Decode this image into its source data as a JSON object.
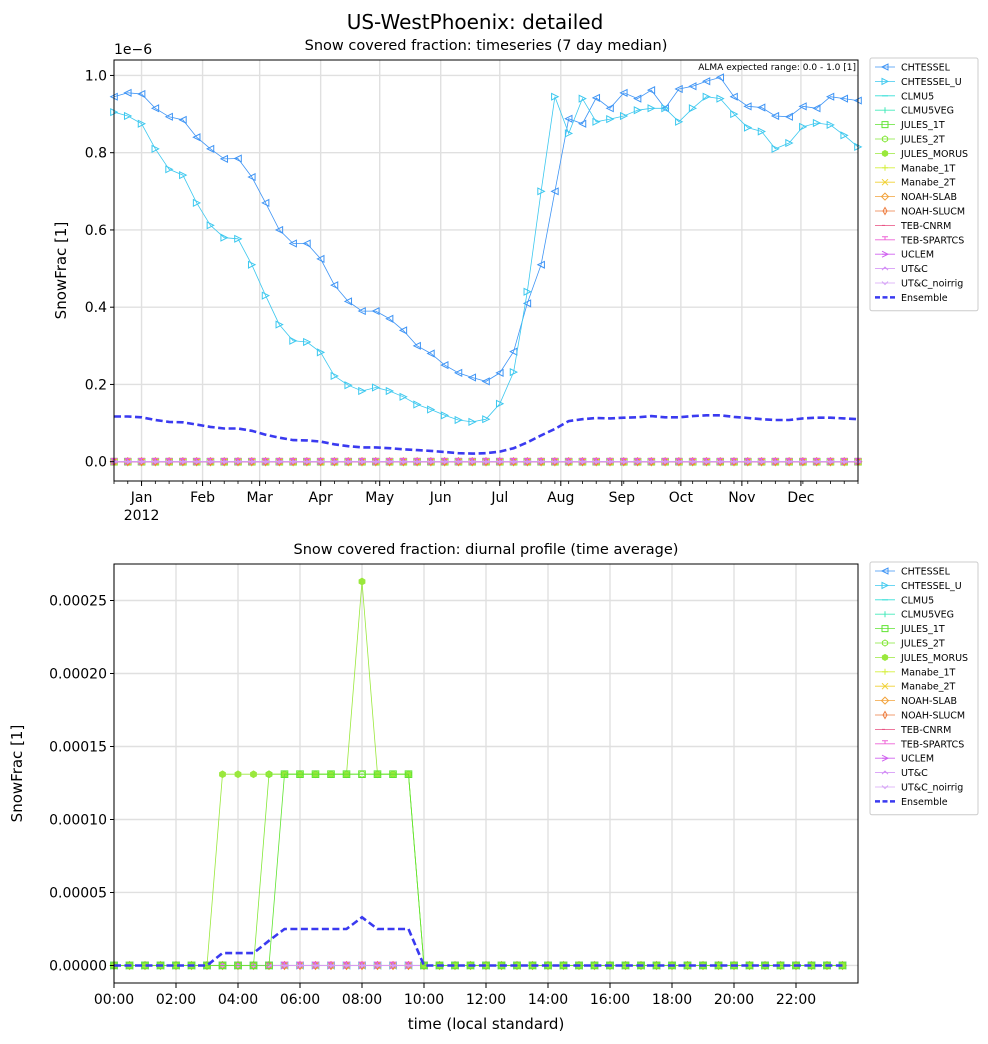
{
  "figure": {
    "suptitle": "US-WestPhoenix: detailed"
  },
  "colors": {
    "CHTESSEL": "#3e94f5",
    "CHTESSEL_U": "#3cc8ef",
    "CLMU5": "#33dfd8",
    "CLMU5VEG": "#40e9b9",
    "JULES_1T": "#5fe430",
    "JULES_2T": "#84e838",
    "JULES_MORUS": "#9ae83c",
    "Manabe_1T": "#d5f03c",
    "Manabe_2T": "#f0d030",
    "NOAH-SLAB": "#f2a23a",
    "NOAH-SLUCM": "#ee7e40",
    "TEB-CNRM": "#e84b7f",
    "TEB-SPARTCS": "#ee60d6",
    "UCLEM": "#d060f0",
    "UT&C": "#d18af5",
    "UT&C_noirrig": "#d6a4f6",
    "Ensemble": "#3a3af0",
    "grid": "#e0e0e0"
  },
  "legend": {
    "entries": [
      {
        "name": "CHTESSEL",
        "marker": "tri-left"
      },
      {
        "name": "CHTESSEL_U",
        "marker": "tri-right"
      },
      {
        "name": "CLMU5",
        "marker": "tick-horizontal"
      },
      {
        "name": "CLMU5VEG",
        "marker": "tick-vertical"
      },
      {
        "name": "JULES_1T",
        "marker": "square"
      },
      {
        "name": "JULES_2T",
        "marker": "hexagon"
      },
      {
        "name": "JULES_MORUS",
        "marker": "filled-hexagon"
      },
      {
        "name": "Manabe_1T",
        "marker": "plus"
      },
      {
        "name": "Manabe_2T",
        "marker": "x"
      },
      {
        "name": "NOAH-SLAB",
        "marker": "diamond"
      },
      {
        "name": "NOAH-SLUCM",
        "marker": "thin-diamond"
      },
      {
        "name": "TEB-CNRM",
        "marker": "tick-left"
      },
      {
        "name": "TEB-SPARTCS",
        "marker": "tick-up"
      },
      {
        "name": "UCLEM",
        "marker": "arrow-right"
      },
      {
        "name": "UT&C",
        "marker": "caret-up"
      },
      {
        "name": "UT&C_noirrig",
        "marker": "caret-down"
      },
      {
        "name": "Ensemble",
        "marker": "dashed-line"
      }
    ]
  },
  "chart_data": [
    {
      "type": "line",
      "title": "Snow covered fraction: timeseries (7 day median)",
      "ylabel": "SnowFrac [1]",
      "y_scale_label": "1e−6",
      "annotation": "ALMA expected range: 0.0 - 1.0 [1]",
      "x_unit": "date",
      "xlim": [
        "2011-12-18",
        "2012-12-30"
      ],
      "ylim": [
        -0.05,
        1.04
      ],
      "yticks": [
        "0.0",
        "0.2",
        "0.4",
        "0.6",
        "0.8",
        "1.0"
      ],
      "ytick_values": [
        0.0,
        0.2,
        0.4,
        0.6,
        0.8,
        1.0
      ],
      "xtick_dates": [
        "2012-01-01",
        "2012-02-01",
        "2012-03-01",
        "2012-04-01",
        "2012-05-01",
        "2012-06-01",
        "2012-07-01",
        "2012-08-01",
        "2012-09-01",
        "2012-10-01",
        "2012-11-01",
        "2012-12-01"
      ],
      "xticks": [
        "Jan",
        "Feb",
        "Mar",
        "Apr",
        "May",
        "Jun",
        "Jul",
        "Aug",
        "Sep",
        "Oct",
        "Nov",
        "Dec"
      ],
      "xtick_year": "2012",
      "grid": true,
      "legend_placement": "outside-right",
      "series": [
        {
          "name": "CHTESSEL",
          "x": [
            "2011-12-18",
            "2011-12-25",
            "2012-01-01",
            "2012-01-08",
            "2012-01-15",
            "2012-01-22",
            "2012-01-29",
            "2012-02-05",
            "2012-02-12",
            "2012-02-19",
            "2012-02-26",
            "2012-03-04",
            "2012-03-11",
            "2012-03-18",
            "2012-03-25",
            "2012-04-01",
            "2012-04-08",
            "2012-04-15",
            "2012-04-22",
            "2012-04-29",
            "2012-05-06",
            "2012-05-13",
            "2012-05-20",
            "2012-05-27",
            "2012-06-03",
            "2012-06-10",
            "2012-06-17",
            "2012-06-24",
            "2012-07-01",
            "2012-07-08",
            "2012-07-15",
            "2012-07-22",
            "2012-07-29",
            "2012-08-05",
            "2012-08-12",
            "2012-08-19",
            "2012-08-26",
            "2012-09-02",
            "2012-09-09",
            "2012-09-16",
            "2012-09-23",
            "2012-09-30",
            "2012-10-07",
            "2012-10-14",
            "2012-10-21",
            "2012-10-28",
            "2012-11-04",
            "2012-11-11",
            "2012-11-18",
            "2012-11-25",
            "2012-12-02",
            "2012-12-09",
            "2012-12-16",
            "2012-12-23",
            "2012-12-30"
          ],
          "y": [
            0.945,
            0.955,
            0.952,
            0.915,
            0.893,
            0.885,
            0.84,
            0.81,
            0.784,
            0.785,
            0.737,
            0.67,
            0.6,
            0.565,
            0.565,
            0.525,
            0.457,
            0.415,
            0.39,
            0.39,
            0.37,
            0.34,
            0.3,
            0.28,
            0.25,
            0.23,
            0.218,
            0.208,
            0.23,
            0.285,
            0.41,
            0.51,
            0.7,
            0.888,
            0.875,
            0.942,
            0.915,
            0.955,
            0.94,
            0.962,
            0.915,
            0.965,
            0.972,
            0.985,
            0.995,
            0.945,
            0.92,
            0.917,
            0.895,
            0.893,
            0.92,
            0.915,
            0.945,
            0.94,
            0.935
          ]
        },
        {
          "name": "CHTESSEL_U",
          "x": [
            "2011-12-18",
            "2011-12-25",
            "2012-01-01",
            "2012-01-08",
            "2012-01-15",
            "2012-01-22",
            "2012-01-29",
            "2012-02-05",
            "2012-02-12",
            "2012-02-19",
            "2012-02-26",
            "2012-03-04",
            "2012-03-11",
            "2012-03-18",
            "2012-03-25",
            "2012-04-01",
            "2012-04-08",
            "2012-04-15",
            "2012-04-22",
            "2012-04-29",
            "2012-05-06",
            "2012-05-13",
            "2012-05-20",
            "2012-05-27",
            "2012-06-03",
            "2012-06-10",
            "2012-06-17",
            "2012-06-24",
            "2012-07-01",
            "2012-07-08",
            "2012-07-15",
            "2012-07-22",
            "2012-07-29",
            "2012-08-05",
            "2012-08-12",
            "2012-08-19",
            "2012-08-26",
            "2012-09-02",
            "2012-09-09",
            "2012-09-16",
            "2012-09-23",
            "2012-09-30",
            "2012-10-07",
            "2012-10-14",
            "2012-10-21",
            "2012-10-28",
            "2012-11-04",
            "2012-11-11",
            "2012-11-18",
            "2012-11-25",
            "2012-12-02",
            "2012-12-09",
            "2012-12-16",
            "2012-12-23",
            "2012-12-30"
          ],
          "y": [
            0.905,
            0.895,
            0.875,
            0.81,
            0.757,
            0.742,
            0.67,
            0.612,
            0.58,
            0.577,
            0.51,
            0.43,
            0.355,
            0.313,
            0.31,
            0.283,
            0.222,
            0.198,
            0.183,
            0.192,
            0.183,
            0.168,
            0.148,
            0.135,
            0.12,
            0.108,
            0.103,
            0.11,
            0.15,
            0.232,
            0.44,
            0.7,
            0.945,
            0.85,
            0.94,
            0.88,
            0.887,
            0.895,
            0.91,
            0.915,
            0.915,
            0.88,
            0.915,
            0.945,
            0.94,
            0.9,
            0.865,
            0.855,
            0.81,
            0.825,
            0.867,
            0.877,
            0.872,
            0.845,
            0.815
          ]
        },
        {
          "name": "Ensemble",
          "x": [
            "2011-12-18",
            "2011-12-25",
            "2012-01-01",
            "2012-01-08",
            "2012-01-15",
            "2012-01-22",
            "2012-01-29",
            "2012-02-05",
            "2012-02-12",
            "2012-02-19",
            "2012-02-26",
            "2012-03-04",
            "2012-03-11",
            "2012-03-18",
            "2012-03-25",
            "2012-04-01",
            "2012-04-08",
            "2012-04-15",
            "2012-04-22",
            "2012-04-29",
            "2012-05-06",
            "2012-05-13",
            "2012-05-20",
            "2012-05-27",
            "2012-06-03",
            "2012-06-10",
            "2012-06-17",
            "2012-06-24",
            "2012-07-01",
            "2012-07-08",
            "2012-07-15",
            "2012-07-22",
            "2012-07-29",
            "2012-08-05",
            "2012-08-12",
            "2012-08-19",
            "2012-08-26",
            "2012-09-02",
            "2012-09-09",
            "2012-09-16",
            "2012-09-23",
            "2012-09-30",
            "2012-10-07",
            "2012-10-14",
            "2012-10-21",
            "2012-10-28",
            "2012-11-04",
            "2012-11-11",
            "2012-11-18",
            "2012-11-25",
            "2012-12-02",
            "2012-12-09",
            "2012-12-16",
            "2012-12-23",
            "2012-12-30"
          ],
          "y": [
            0.117,
            0.117,
            0.115,
            0.108,
            0.103,
            0.102,
            0.096,
            0.09,
            0.086,
            0.086,
            0.08,
            0.07,
            0.062,
            0.056,
            0.055,
            0.052,
            0.045,
            0.04,
            0.037,
            0.037,
            0.035,
            0.032,
            0.03,
            0.028,
            0.025,
            0.022,
            0.021,
            0.022,
            0.026,
            0.035,
            0.05,
            0.068,
            0.085,
            0.105,
            0.11,
            0.113,
            0.112,
            0.114,
            0.115,
            0.118,
            0.115,
            0.115,
            0.118,
            0.12,
            0.12,
            0.116,
            0.113,
            0.11,
            0.108,
            0.108,
            0.112,
            0.114,
            0.114,
            0.112,
            0.11
          ]
        },
        {
          "name": "JULES_1T",
          "constant": 0.0
        },
        {
          "name": "NOAH-SLAB",
          "constant": 0.0
        },
        {
          "name": "NOAH-SLUCM",
          "constant": 0.0
        },
        {
          "name": "TEB-CNRM",
          "constant": 0.0
        },
        {
          "name": "UT&C_noirrig",
          "constant": 0.0
        }
      ]
    },
    {
      "type": "line",
      "title": "Snow covered fraction: diurnal profile (time average)",
      "xlabel": "time (local standard)",
      "ylabel": "SnowFrac [1]",
      "x_unit": "hours",
      "xlim": [
        0,
        24
      ],
      "ylim": [
        -1.2e-05,
        0.000275
      ],
      "yticks": [
        "0.00000",
        "0.00005",
        "0.00010",
        "0.00015",
        "0.00020",
        "0.00025"
      ],
      "ytick_values": [
        0.0,
        5e-05,
        0.0001,
        0.00015,
        0.0002,
        0.00025
      ],
      "xticks": [
        "00:00",
        "02:00",
        "04:00",
        "06:00",
        "08:00",
        "10:00",
        "12:00",
        "14:00",
        "16:00",
        "18:00",
        "20:00",
        "22:00"
      ],
      "xtick_values": [
        0,
        2,
        4,
        6,
        8,
        10,
        12,
        14,
        16,
        18,
        20,
        22
      ],
      "grid": true,
      "legend_placement": "outside-right",
      "series": [
        {
          "name": "JULES_MORUS",
          "x": [
            0,
            0.5,
            1,
            1.5,
            2,
            2.5,
            3,
            3.5,
            4,
            4.5,
            5,
            5.5,
            6,
            6.5,
            7,
            7.5,
            8,
            8.5,
            9,
            9.5,
            10,
            10.5,
            11,
            11.5,
            12,
            12.5,
            13,
            13.5,
            14,
            14.5,
            15,
            15.5,
            16,
            16.5,
            17,
            17.5,
            18,
            18.5,
            19,
            19.5,
            20,
            20.5,
            21,
            21.5,
            22,
            22.5,
            23,
            23.5
          ],
          "y": [
            0,
            0,
            0,
            0,
            0,
            0,
            0,
            0.000131,
            0.000131,
            0.000131,
            0.000131,
            0.000131,
            0.000131,
            0.000131,
            0.000131,
            0.000131,
            0.000263,
            0.000131,
            0.000131,
            0.000131,
            0,
            0,
            0,
            0,
            0,
            0,
            0,
            0,
            0,
            0,
            0,
            0,
            0,
            0,
            0,
            0,
            0,
            0,
            0,
            0,
            0,
            0,
            0,
            0,
            0,
            0,
            0,
            0
          ]
        },
        {
          "name": "JULES_2T",
          "x": [
            0,
            0.5,
            1,
            1.5,
            2,
            2.5,
            3,
            3.5,
            4,
            4.5,
            5,
            5.5,
            6,
            6.5,
            7,
            7.5,
            8,
            8.5,
            9,
            9.5,
            10,
            10.5,
            11,
            11.5,
            12,
            12.5,
            13,
            13.5,
            14,
            14.5,
            15,
            15.5,
            16,
            16.5,
            17,
            17.5,
            18,
            18.5,
            19,
            19.5,
            20,
            20.5,
            21,
            21.5,
            22,
            22.5,
            23,
            23.5
          ],
          "y": [
            0,
            0,
            0,
            0,
            0,
            0,
            0,
            0,
            0,
            0,
            0.000131,
            0.000131,
            0.000131,
            0.000131,
            0.000131,
            0.000131,
            0.000131,
            0.000131,
            0.000131,
            0.000131,
            0,
            0,
            0,
            0,
            0,
            0,
            0,
            0,
            0,
            0,
            0,
            0,
            0,
            0,
            0,
            0,
            0,
            0,
            0,
            0,
            0,
            0,
            0,
            0,
            0,
            0,
            0,
            0
          ]
        },
        {
          "name": "JULES_1T",
          "x": [
            0,
            0.5,
            1,
            1.5,
            2,
            2.5,
            3,
            3.5,
            4,
            4.5,
            5,
            5.5,
            6,
            6.5,
            7,
            7.5,
            8,
            8.5,
            9,
            9.5,
            10,
            10.5,
            11,
            11.5,
            12,
            12.5,
            13,
            13.5,
            14,
            14.5,
            15,
            15.5,
            16,
            16.5,
            17,
            17.5,
            18,
            18.5,
            19,
            19.5,
            20,
            20.5,
            21,
            21.5,
            22,
            22.5,
            23,
            23.5
          ],
          "y": [
            0,
            0,
            0,
            0,
            0,
            0,
            0,
            0,
            0,
            0,
            0,
            0.000131,
            0.000131,
            0.000131,
            0.000131,
            0.000131,
            0.000131,
            0.000131,
            0.000131,
            0.000131,
            0,
            0,
            0,
            0,
            0,
            0,
            0,
            0,
            0,
            0,
            0,
            0,
            0,
            0,
            0,
            0,
            0,
            0,
            0,
            0,
            0,
            0,
            0,
            0,
            0,
            0,
            0,
            0
          ]
        },
        {
          "name": "Ensemble",
          "x": [
            0,
            0.5,
            1,
            1.5,
            2,
            2.5,
            3,
            3.5,
            4,
            4.5,
            5,
            5.5,
            6,
            6.5,
            7,
            7.5,
            8,
            8.5,
            9,
            9.5,
            10,
            10.5,
            11,
            11.5,
            12,
            12.5,
            13,
            13.5,
            14,
            14.5,
            15,
            15.5,
            16,
            16.5,
            17,
            17.5,
            18,
            18.5,
            19,
            19.5,
            20,
            20.5,
            21,
            21.5,
            22,
            22.5,
            23,
            23.5
          ],
          "y": [
            0,
            0,
            0,
            0,
            0,
            0,
            0,
            8.5e-06,
            8.5e-06,
            8.5e-06,
            1.7e-05,
            2.5e-05,
            2.5e-05,
            2.5e-05,
            2.5e-05,
            2.5e-05,
            3.3e-05,
            2.5e-05,
            2.5e-05,
            2.5e-05,
            0,
            0,
            0,
            0,
            0,
            0,
            0,
            0,
            0,
            0,
            0,
            0,
            0,
            0,
            0,
            0,
            0,
            0,
            0,
            0,
            0,
            0,
            0,
            0,
            0,
            0,
            0,
            0
          ]
        },
        {
          "name": "NOAH-SLAB",
          "constant": 0.0
        },
        {
          "name": "NOAH-SLUCM",
          "constant": 0.0
        },
        {
          "name": "TEB-CNRM",
          "constant": 0.0
        },
        {
          "name": "UT&C_noirrig",
          "constant": 0.0
        }
      ]
    }
  ]
}
